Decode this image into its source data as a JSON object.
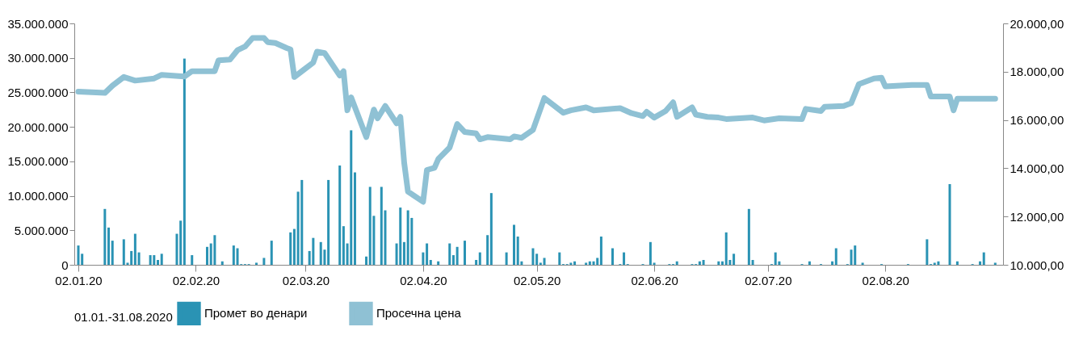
{
  "chart_data": {
    "type": "bar",
    "legend_title": "01.01.-31.08.2020",
    "legend": "bottom",
    "grid": false,
    "xlim": [
      "2020-01-02",
      "2020-09-01"
    ],
    "xticks": [
      {
        "value": "2020-01-02",
        "label": "02.01.20"
      },
      {
        "value": "2020-02-02",
        "label": "02.02.20"
      },
      {
        "value": "2020-03-02",
        "label": "02.03.20"
      },
      {
        "value": "2020-04-02",
        "label": "02.04.20"
      },
      {
        "value": "2020-05-02",
        "label": "02.05.20"
      },
      {
        "value": "2020-06-02",
        "label": "02.06.20"
      },
      {
        "value": "2020-07-02",
        "label": "02.07.20"
      },
      {
        "value": "2020-08-02",
        "label": "02.08.20"
      }
    ],
    "ylim": [
      0,
      35000000
    ],
    "yticks": [
      {
        "value": 0,
        "label": "0"
      },
      {
        "value": 5000000,
        "label": "5.000.000"
      },
      {
        "value": 10000000,
        "label": "10.000.000"
      },
      {
        "value": 15000000,
        "label": "15.000.000"
      },
      {
        "value": 20000000,
        "label": "20.000.000"
      },
      {
        "value": 25000000,
        "label": "25.000.000"
      },
      {
        "value": 30000000,
        "label": "30.000.000"
      },
      {
        "value": 35000000,
        "label": "35.000.000"
      }
    ],
    "y2lim": [
      10000,
      20000
    ],
    "y2ticks": [
      {
        "value": 10000,
        "label": "10.000,00"
      },
      {
        "value": 12000,
        "label": "12.000,00"
      },
      {
        "value": 14000,
        "label": "14.000,00"
      },
      {
        "value": 16000,
        "label": "16.000,00"
      },
      {
        "value": 18000,
        "label": "18.000,00"
      },
      {
        "value": 20000,
        "label": "20.000,00"
      }
    ],
    "series": [
      {
        "name": "Промет во денари",
        "color": "#2a93b4",
        "x": [
          "2020-01-02",
          "2020-01-03",
          "2020-01-09",
          "2020-01-10",
          "2020-01-11",
          "2020-01-14",
          "2020-01-15",
          "2020-01-16",
          "2020-01-17",
          "2020-01-18",
          "2020-01-21",
          "2020-01-22",
          "2020-01-23",
          "2020-01-24",
          "2020-01-28",
          "2020-01-29",
          "2020-01-30",
          "2020-02-01",
          "2020-02-05",
          "2020-02-06",
          "2020-02-07",
          "2020-02-09",
          "2020-02-12",
          "2020-02-13",
          "2020-02-14",
          "2020-02-15",
          "2020-02-16",
          "2020-02-18",
          "2020-02-20",
          "2020-02-22",
          "2020-02-27",
          "2020-02-28",
          "2020-02-29",
          "2020-03-01",
          "2020-03-03",
          "2020-03-04",
          "2020-03-06",
          "2020-03-07",
          "2020-03-08",
          "2020-03-11",
          "2020-03-12",
          "2020-03-13",
          "2020-03-14",
          "2020-03-15",
          "2020-03-18",
          "2020-03-19",
          "2020-03-20",
          "2020-03-22",
          "2020-03-23",
          "2020-03-26",
          "2020-03-27",
          "2020-03-28",
          "2020-03-29",
          "2020-03-30",
          "2020-04-02",
          "2020-04-03",
          "2020-04-04",
          "2020-04-06",
          "2020-04-09",
          "2020-04-10",
          "2020-04-11",
          "2020-04-13",
          "2020-04-16",
          "2020-04-17",
          "2020-04-19",
          "2020-04-20",
          "2020-04-24",
          "2020-04-26",
          "2020-04-27",
          "2020-04-28",
          "2020-05-01",
          "2020-05-02",
          "2020-05-03",
          "2020-05-04",
          "2020-05-08",
          "2020-05-09",
          "2020-05-10",
          "2020-05-11",
          "2020-05-12",
          "2020-05-15",
          "2020-05-16",
          "2020-05-17",
          "2020-05-18",
          "2020-05-19",
          "2020-05-22",
          "2020-05-24",
          "2020-05-25",
          "2020-05-26",
          "2020-05-30",
          "2020-06-01",
          "2020-06-02",
          "2020-06-06",
          "2020-06-07",
          "2020-06-08",
          "2020-06-12",
          "2020-06-13",
          "2020-06-14",
          "2020-06-15",
          "2020-06-19",
          "2020-06-20",
          "2020-06-21",
          "2020-06-22",
          "2020-06-23",
          "2020-06-27",
          "2020-06-28",
          "2020-07-03",
          "2020-07-04",
          "2020-07-05",
          "2020-07-11",
          "2020-07-13",
          "2020-07-16",
          "2020-07-19",
          "2020-07-20",
          "2020-07-23",
          "2020-07-24",
          "2020-07-25",
          "2020-07-27",
          "2020-08-01",
          "2020-08-08",
          "2020-08-13",
          "2020-08-14",
          "2020-08-15",
          "2020-08-16",
          "2020-08-19",
          "2020-08-21",
          "2020-08-25",
          "2020-08-27",
          "2020-08-28",
          "2020-08-31"
        ],
        "values": [
          2800000,
          1600000,
          8100000,
          5400000,
          3500000,
          3700000,
          300000,
          2000000,
          4500000,
          1800000,
          1400000,
          1400000,
          700000,
          1600000,
          4500000,
          6400000,
          29900000,
          1400000,
          2600000,
          3100000,
          4300000,
          500000,
          2800000,
          2400000,
          100000,
          100000,
          100000,
          300000,
          1000000,
          3500000,
          4700000,
          5200000,
          10600000,
          12300000,
          2000000,
          3900000,
          3300000,
          2200000,
          12300000,
          14400000,
          5600000,
          3100000,
          19500000,
          13400000,
          1200000,
          11300000,
          7100000,
          11300000,
          7900000,
          3100000,
          8300000,
          3300000,
          7900000,
          6800000,
          1800000,
          3100000,
          700000,
          500000,
          3100000,
          1400000,
          2600000,
          3500000,
          700000,
          1800000,
          4300000,
          10400000,
          1800000,
          5800000,
          4100000,
          500000,
          2400000,
          1600000,
          300000,
          1000000,
          1800000,
          100000,
          100000,
          300000,
          500000,
          300000,
          500000,
          500000,
          1000000,
          4100000,
          2400000,
          100000,
          1800000,
          100000,
          100000,
          3300000,
          300000,
          100000,
          100000,
          500000,
          100000,
          100000,
          500000,
          700000,
          500000,
          500000,
          4700000,
          700000,
          1600000,
          8100000,
          700000,
          100000,
          1800000,
          500000,
          100000,
          500000,
          100000,
          500000,
          2400000,
          100000,
          2200000,
          2800000,
          300000,
          100000,
          100000,
          3700000,
          100000,
          300000,
          500000,
          11700000,
          500000,
          100000,
          500000,
          1800000,
          300000
        ]
      },
      {
        "name": "Просечна цена",
        "type": "line",
        "axis": "y2",
        "color": "#8fc1d4",
        "x": [
          "2020-01-02",
          "2020-01-09",
          "2020-01-11",
          "2020-01-14",
          "2020-01-17",
          "2020-01-22",
          "2020-01-24",
          "2020-01-30",
          "2020-02-01",
          "2020-02-07",
          "2020-02-08",
          "2020-02-11",
          "2020-02-13",
          "2020-02-15",
          "2020-02-17",
          "2020-02-20",
          "2020-02-21",
          "2020-02-23",
          "2020-02-26",
          "2020-02-27",
          "2020-02-28",
          "2020-03-02",
          "2020-03-04",
          "2020-03-05",
          "2020-03-07",
          "2020-03-11",
          "2020-03-12",
          "2020-03-13",
          "2020-03-14",
          "2020-03-18",
          "2020-03-20",
          "2020-03-21",
          "2020-03-23",
          "2020-03-26",
          "2020-03-27",
          "2020-03-28",
          "2020-03-29",
          "2020-04-02",
          "2020-04-03",
          "2020-04-05",
          "2020-04-06",
          "2020-04-09",
          "2020-04-11",
          "2020-04-13",
          "2020-04-16",
          "2020-04-17",
          "2020-04-19",
          "2020-04-25",
          "2020-04-26",
          "2020-04-28",
          "2020-05-01",
          "2020-05-04",
          "2020-05-09",
          "2020-05-11",
          "2020-05-15",
          "2020-05-17",
          "2020-05-24",
          "2020-05-27",
          "2020-05-30",
          "2020-05-31",
          "2020-06-02",
          "2020-06-05",
          "2020-06-07",
          "2020-06-08",
          "2020-06-12",
          "2020-06-13",
          "2020-06-16",
          "2020-06-19",
          "2020-06-21",
          "2020-06-28",
          "2020-07-01",
          "2020-07-05",
          "2020-07-11",
          "2020-07-12",
          "2020-07-16",
          "2020-07-17",
          "2020-07-22",
          "2020-07-24",
          "2020-07-26",
          "2020-07-27",
          "2020-07-30",
          "2020-08-01",
          "2020-08-02",
          "2020-08-09",
          "2020-08-13",
          "2020-08-14",
          "2020-08-19",
          "2020-08-20",
          "2020-08-21",
          "2020-08-31"
        ],
        "values": [
          17170,
          17120,
          17420,
          17780,
          17630,
          17720,
          17870,
          17800,
          18020,
          18020,
          18470,
          18500,
          18890,
          19040,
          19400,
          19400,
          19220,
          19190,
          18980,
          18920,
          17780,
          18140,
          18380,
          18830,
          18770,
          17840,
          18020,
          16400,
          16940,
          15290,
          16430,
          16070,
          16580,
          15860,
          16130,
          14230,
          13030,
          12610,
          13930,
          14020,
          14380,
          14860,
          15830,
          15500,
          15440,
          15200,
          15290,
          15200,
          15320,
          15260,
          15590,
          16910,
          16300,
          16400,
          16520,
          16400,
          16490,
          16280,
          16160,
          16340,
          16100,
          16370,
          16730,
          16130,
          16520,
          16220,
          16130,
          16100,
          16040,
          16100,
          15980,
          16070,
          16040,
          16460,
          16370,
          16550,
          16580,
          16700,
          17480,
          17540,
          17720,
          17750,
          17390,
          17450,
          17450,
          16970,
          16970,
          16400,
          16880,
          16880
        ]
      }
    ]
  }
}
